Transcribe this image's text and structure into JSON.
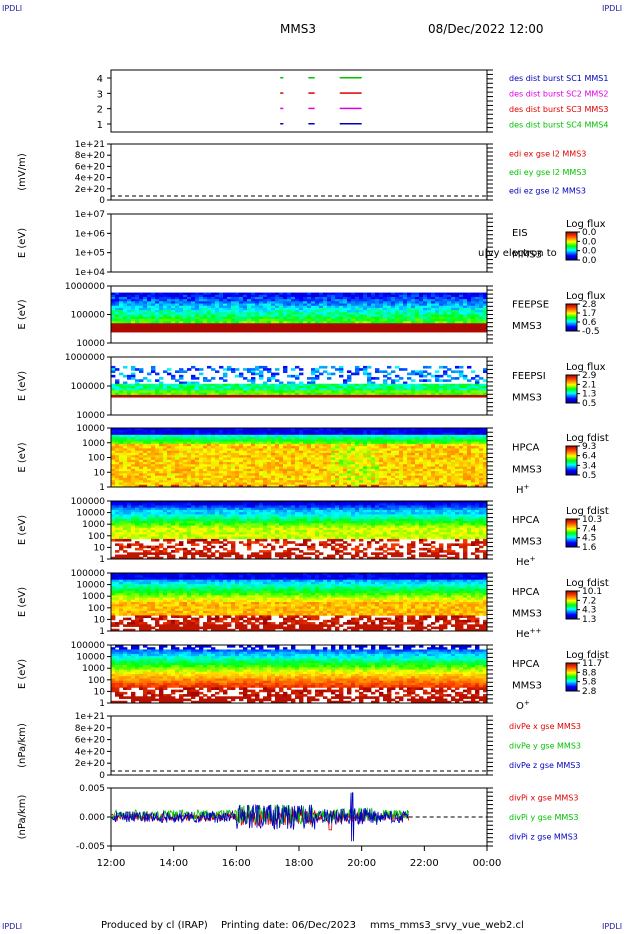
{
  "corners": {
    "top_left": "IPDLI",
    "top_right": "IPDLI",
    "bottom_left": "IPDLI",
    "bottom_right": "IPDLI"
  },
  "header": {
    "spacecraft": "MMS3",
    "datetime": "08/Dec/2022 12:00"
  },
  "footer": {
    "produced_by": "Produced by cl (IRAP)",
    "printing_date": "Printing date: 06/Dec/2023",
    "script": "mms_mms3_srvy_vue_web2.cl"
  },
  "time_axis": {
    "ticks": [
      "12:00",
      "14:00",
      "16:00",
      "18:00",
      "20:00",
      "22:00",
      "00:00"
    ],
    "start_hour": 12,
    "end_hour": 24
  },
  "colors": {
    "red": "#e00000",
    "green": "#00c000",
    "blue": "#0000c0",
    "magenta": "#e000e0"
  },
  "chart_data": [
    {
      "type": "scatter",
      "name": "burst_intervals",
      "yticks": [
        "1",
        "2",
        "3",
        "4"
      ],
      "legend": [
        {
          "text": "des dist burst SC1 MMS1",
          "color": "#0000c0"
        },
        {
          "text": "des dist burst SC2 MMS2",
          "color": "#e000e0"
        },
        {
          "text": "des dist burst SC3 MMS3",
          "color": "#e00000"
        },
        {
          "text": "des dist burst SC4 MMS4",
          "color": "#00c000"
        }
      ],
      "segments": [
        {
          "sc": 1,
          "start": 17.4,
          "end": 17.5,
          "color": "#0000c0"
        },
        {
          "sc": 1,
          "start": 18.3,
          "end": 18.5,
          "color": "#0000c0"
        },
        {
          "sc": 1,
          "start": 19.3,
          "end": 20.0,
          "color": "#0000c0"
        },
        {
          "sc": 2,
          "start": 17.4,
          "end": 17.5,
          "color": "#e000e0"
        },
        {
          "sc": 2,
          "start": 18.3,
          "end": 18.5,
          "color": "#e000e0"
        },
        {
          "sc": 2,
          "start": 19.3,
          "end": 20.0,
          "color": "#e000e0"
        },
        {
          "sc": 3,
          "start": 17.4,
          "end": 17.5,
          "color": "#e00000"
        },
        {
          "sc": 3,
          "start": 18.3,
          "end": 18.5,
          "color": "#e00000"
        },
        {
          "sc": 3,
          "start": 19.3,
          "end": 20.0,
          "color": "#e00000"
        },
        {
          "sc": 4,
          "start": 17.4,
          "end": 17.5,
          "color": "#00c000"
        },
        {
          "sc": 4,
          "start": 18.3,
          "end": 18.5,
          "color": "#00c000"
        },
        {
          "sc": 4,
          "start": 19.3,
          "end": 20.0,
          "color": "#00c000"
        }
      ]
    },
    {
      "type": "line",
      "name": "edi_e",
      "ylabel": "(mV/m)",
      "yticks": [
        "1e+21",
        "8e+20",
        "6e+20",
        "4e+20",
        "2e+20",
        "0"
      ],
      "legend": [
        {
          "text": "edi ex gse l2 MMS3",
          "color": "#e00000"
        },
        {
          "text": "edi ey gse l2 MMS3",
          "color": "#00c000"
        },
        {
          "text": "edi ez gse l2 MMS3",
          "color": "#0000c0"
        }
      ]
    },
    {
      "type": "heatmap",
      "name": "eis",
      "ylabel": "E (eV)",
      "yticks": [
        "1e+07",
        "1e+06",
        "1e+05",
        "1e+04"
      ],
      "labels": [
        "EIS",
        "MMS3"
      ],
      "overlay_text": "u|vy electron to",
      "cbar": {
        "title": "Log flux",
        "values": [
          "0.0",
          "0.0",
          "0.0",
          "0.0"
        ]
      }
    },
    {
      "type": "heatmap",
      "name": "feeps_e",
      "ylabel": "E (eV)",
      "yticks": [
        "1000000",
        "100000",
        "10000"
      ],
      "labels": [
        "FEEPSE",
        "MMS3"
      ],
      "cbar": {
        "title": "Log flux",
        "values": [
          "2.8",
          "1.7",
          "0.6",
          "-0.5"
        ]
      }
    },
    {
      "type": "heatmap",
      "name": "feeps_i",
      "ylabel": "E (eV)",
      "yticks": [
        "1000000",
        "100000",
        "10000"
      ],
      "labels": [
        "FEEPSI",
        "MMS3"
      ],
      "cbar": {
        "title": "Log flux",
        "values": [
          "2.9",
          "2.1",
          "1.3",
          "0.5"
        ]
      }
    },
    {
      "type": "heatmap",
      "name": "hpca_h",
      "ylabel": "E (eV)",
      "yticks": [
        "10000",
        "1000",
        "100",
        "10",
        "1"
      ],
      "labels": [
        "HPCA",
        "MMS3"
      ],
      "species": "H",
      "species_sup": "+",
      "cbar": {
        "title": "Log fdist",
        "values": [
          "9.3",
          "6.4",
          "3.4",
          "0.5"
        ]
      }
    },
    {
      "type": "heatmap",
      "name": "hpca_he",
      "ylabel": "E (eV)",
      "yticks": [
        "100000",
        "10000",
        "1000",
        "100",
        "10",
        "1"
      ],
      "labels": [
        "HPCA",
        "MMS3"
      ],
      "species": "He",
      "species_sup": "+",
      "cbar": {
        "title": "Log fdist",
        "values": [
          "10.3",
          "7.4",
          "4.5",
          "1.6"
        ]
      }
    },
    {
      "type": "heatmap",
      "name": "hpca_hepp",
      "ylabel": "E (eV)",
      "yticks": [
        "100000",
        "10000",
        "1000",
        "100",
        "10",
        "1"
      ],
      "labels": [
        "HPCA",
        "MMS3"
      ],
      "species": "He",
      "species_sup": "++",
      "cbar": {
        "title": "Log fdist",
        "values": [
          "10.1",
          "7.2",
          "4.3",
          "1.3"
        ]
      }
    },
    {
      "type": "heatmap",
      "name": "hpca_o",
      "ylabel": "E (eV)",
      "yticks": [
        "100000",
        "10000",
        "1000",
        "100",
        "10",
        "1"
      ],
      "labels": [
        "HPCA",
        "MMS3"
      ],
      "species": "O",
      "species_sup": "+",
      "cbar": {
        "title": "Log fdist",
        "values": [
          "11.7",
          "8.8",
          "5.8",
          "2.8"
        ]
      }
    },
    {
      "type": "line",
      "name": "divpe",
      "ylabel": "(nPa/km)",
      "yticks": [
        "1e+21",
        "8e+20",
        "6e+20",
        "4e+20",
        "2e+20",
        "0"
      ],
      "legend": [
        {
          "text": "divPe x gse MMS3",
          "color": "#e00000"
        },
        {
          "text": "divPe y gse MMS3",
          "color": "#00c000"
        },
        {
          "text": "divPe z gse MMS3",
          "color": "#0000c0"
        }
      ]
    },
    {
      "type": "line",
      "name": "divpi",
      "ylabel": "(nPa/km)",
      "yticks": [
        "0.005",
        "0.000",
        "-0.005"
      ],
      "ylim": [
        -0.009,
        0.009
      ],
      "data_end_hour": 21.5,
      "legend": [
        {
          "text": "divPi x gse MMS3",
          "color": "#e00000"
        },
        {
          "text": "divPi y gse MMS3",
          "color": "#00c000"
        },
        {
          "text": "divPi z gse MMS3",
          "color": "#0000c0"
        }
      ]
    }
  ]
}
